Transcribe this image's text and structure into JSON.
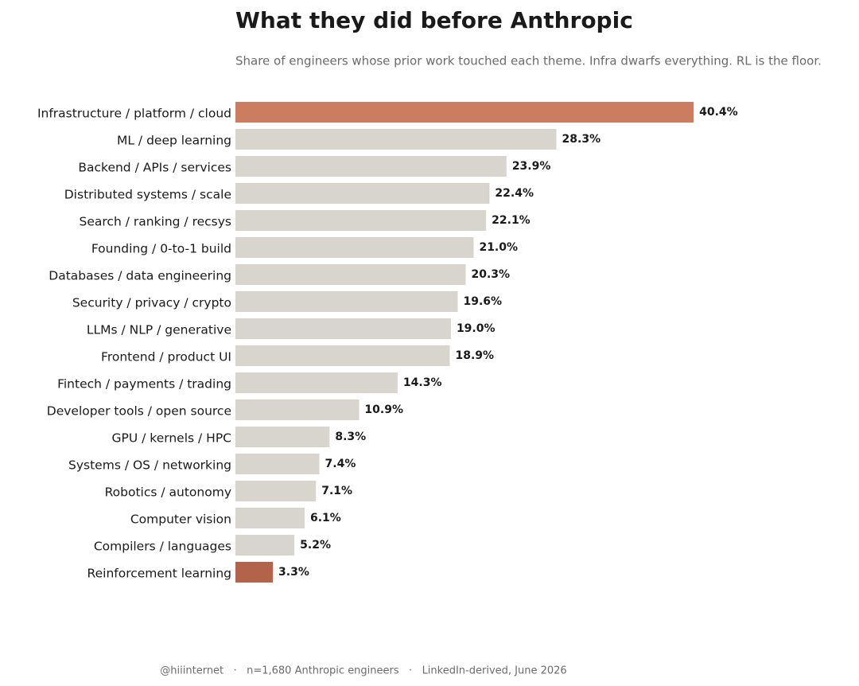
{
  "chart_data": {
    "type": "bar",
    "orientation": "horizontal",
    "title": "What they did before Anthropic",
    "subtitle": "Share of engineers whose prior work touched each theme. Infra dwarfs everything. RL is the floor.",
    "categories": [
      "Infrastructure / platform / cloud",
      "ML / deep learning",
      "Backend / APIs / services",
      "Distributed systems / scale",
      "Search / ranking / recsys",
      "Founding / 0-to-1 build",
      "Databases / data engineering",
      "Security / privacy / crypto",
      "LLMs / NLP / generative",
      "Frontend / product UI",
      "Fintech / payments / trading",
      "Developer tools / open source",
      "GPU / kernels / HPC",
      "Systems / OS / networking",
      "Robotics / autonomy",
      "Computer vision",
      "Compilers / languages",
      "Reinforcement learning"
    ],
    "values": [
      40.4,
      28.3,
      23.9,
      22.4,
      22.1,
      21.0,
      20.3,
      19.6,
      19.0,
      18.9,
      14.3,
      10.9,
      8.3,
      7.4,
      7.1,
      6.1,
      5.2,
      3.3
    ],
    "value_labels": [
      "40.4%",
      "28.3%",
      "23.9%",
      "22.4%",
      "22.1%",
      "21.0%",
      "20.3%",
      "19.6%",
      "19.0%",
      "18.9%",
      "14.3%",
      "10.9%",
      "8.3%",
      "7.4%",
      "7.1%",
      "6.1%",
      "5.2%",
      "3.3%"
    ],
    "colors": [
      "#cc7d5f",
      "#d8d5ce",
      "#d8d5ce",
      "#d8d5ce",
      "#d8d5ce",
      "#d8d5ce",
      "#d8d5ce",
      "#d8d5ce",
      "#d8d5ce",
      "#d8d5ce",
      "#d8d5ce",
      "#d8d5ce",
      "#d8d5ce",
      "#d8d5ce",
      "#d8d5ce",
      "#d8d5ce",
      "#d8d5ce",
      "#b2644a"
    ],
    "footer": "@hiiinternet   ·   n=1,680 Anthropic engineers   ·   LinkedIn-derived, June 2026"
  }
}
